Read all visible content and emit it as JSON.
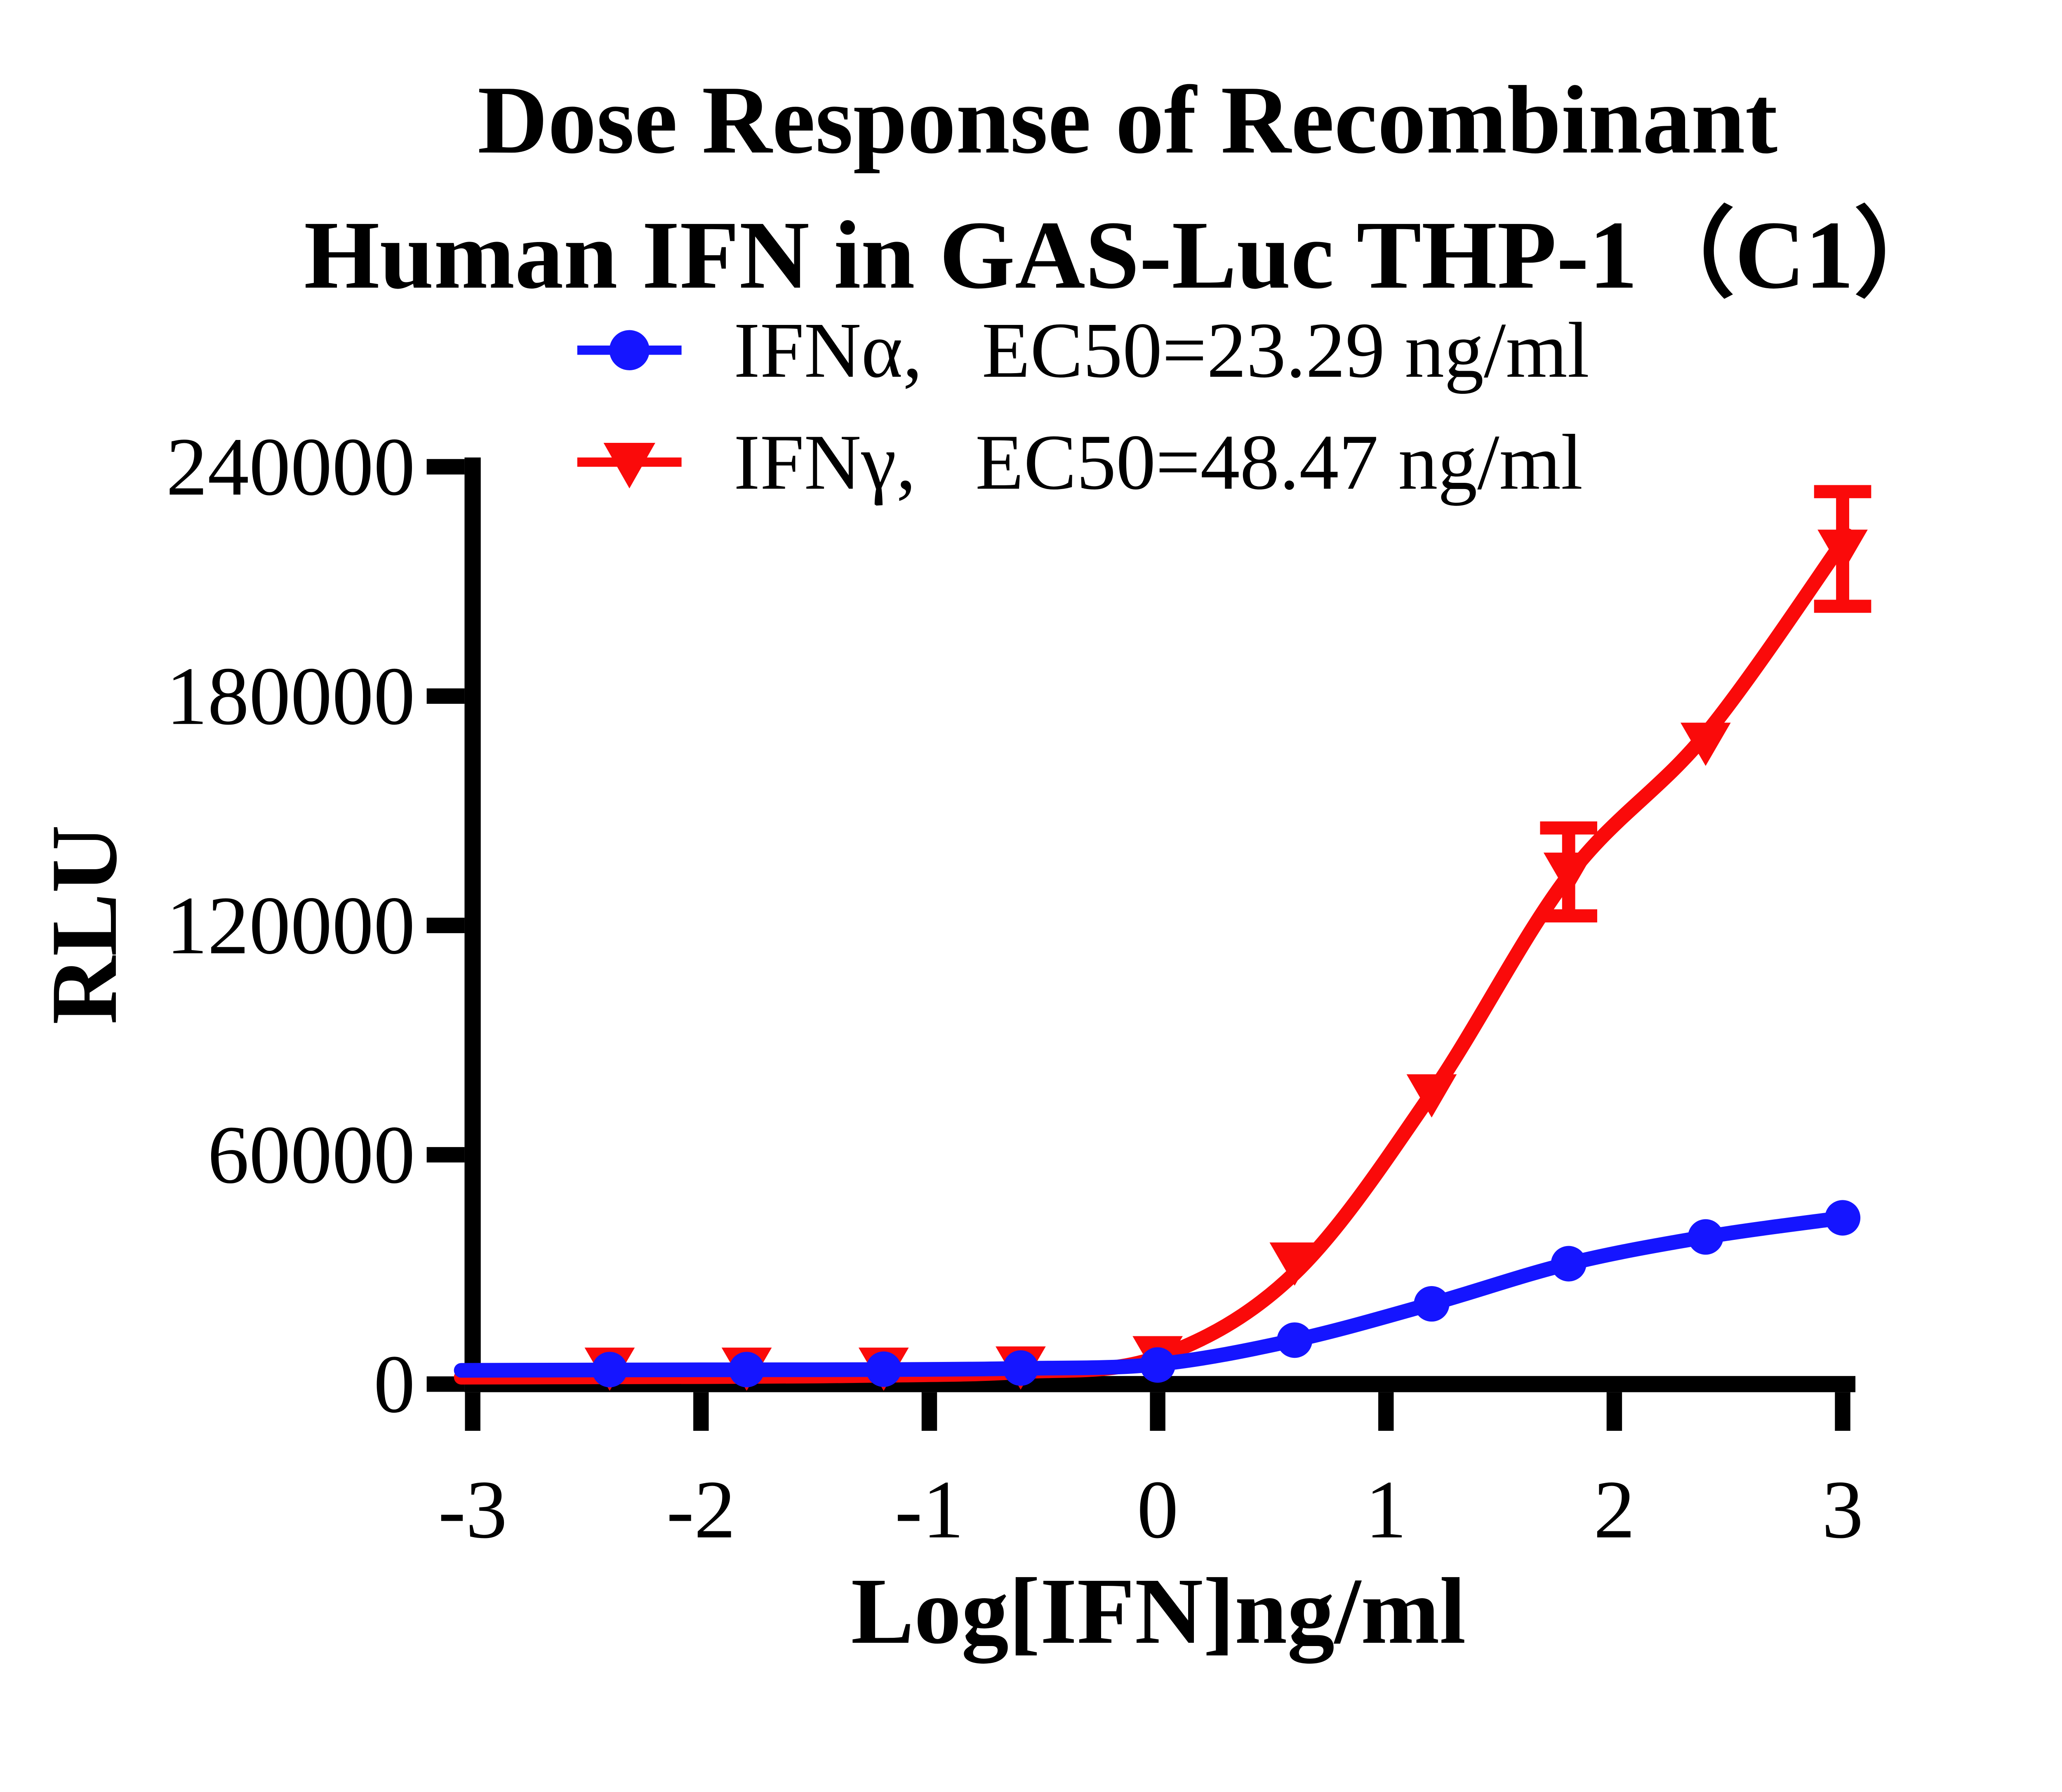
{
  "background_color": "#ffffff",
  "title": {
    "line1": "Dose Response of Recombinant",
    "line2": "Human IFN in GAS-Luc THP-1（C1）"
  },
  "legend": {
    "items": [
      {
        "label": "IFNα,   EC50=23.29 ng/ml",
        "color": "#1515FF",
        "marker": "circle"
      },
      {
        "label": "IFNγ,   EC50=48.47 ng/ml",
        "color": "#FA0A0A",
        "marker": "triangle-down"
      }
    ]
  },
  "chart_data": {
    "type": "line",
    "title": "Dose Response of Recombinant Human IFN in GAS-Luc THP-1（C1）",
    "xlabel": "Log[IFN]ng/ml",
    "ylabel": "RLU",
    "xlim": [
      -3,
      3.1
    ],
    "ylim": [
      0,
      240000
    ],
    "x_ticks": [
      -3,
      -2,
      -1,
      0,
      1,
      2,
      3
    ],
    "y_ticks": [
      0,
      60000,
      120000,
      180000,
      240000
    ],
    "grid": false,
    "legend_position": "top",
    "series": [
      {
        "name": "IFNα",
        "ec50": "23.29 ng/ml",
        "color": "#1515FF",
        "marker": "circle",
        "x": [
          -2.4,
          -1.8,
          -1.2,
          -0.6,
          0,
          0.6,
          1.2,
          1.8,
          2.4,
          3.0
        ],
        "values": [
          3800,
          3800,
          3900,
          4200,
          5000,
          11500,
          21000,
          31500,
          38500,
          43500
        ],
        "errors": [
          0,
          0,
          0,
          0,
          0,
          0,
          0,
          0,
          0,
          0
        ],
        "curve_x": [
          -3.05,
          -2.4,
          -1.8,
          -1.2,
          -0.6,
          0,
          0.6,
          1.2,
          1.8,
          2.4,
          3.0
        ],
        "curve_y": [
          3600,
          3700,
          3750,
          3800,
          4100,
          5200,
          11500,
          21000,
          31500,
          38500,
          43500
        ]
      },
      {
        "name": "IFNγ",
        "ec50": "48.47 ng/ml",
        "color": "#FA0A0A",
        "marker": "triangle-down",
        "x": [
          -2.4,
          -1.8,
          -1.2,
          -0.6,
          0,
          0.6,
          1.2,
          1.8,
          2.4,
          3.0
        ],
        "values": [
          4500,
          4500,
          4500,
          4800,
          7500,
          32000,
          76000,
          134000,
          168000,
          218500
        ],
        "errors": [
          0,
          0,
          0,
          0,
          0,
          0,
          0,
          11500,
          0,
          15000
        ],
        "curve_x": [
          -3.05,
          -2.4,
          -1.8,
          -1.2,
          -0.6,
          0,
          0.6,
          1.2,
          1.8,
          2.4,
          3.02
        ],
        "curve_y": [
          1800,
          1900,
          2000,
          2300,
          3200,
          7000,
          29000,
          76000,
          133000,
          170000,
          222000
        ]
      }
    ]
  }
}
